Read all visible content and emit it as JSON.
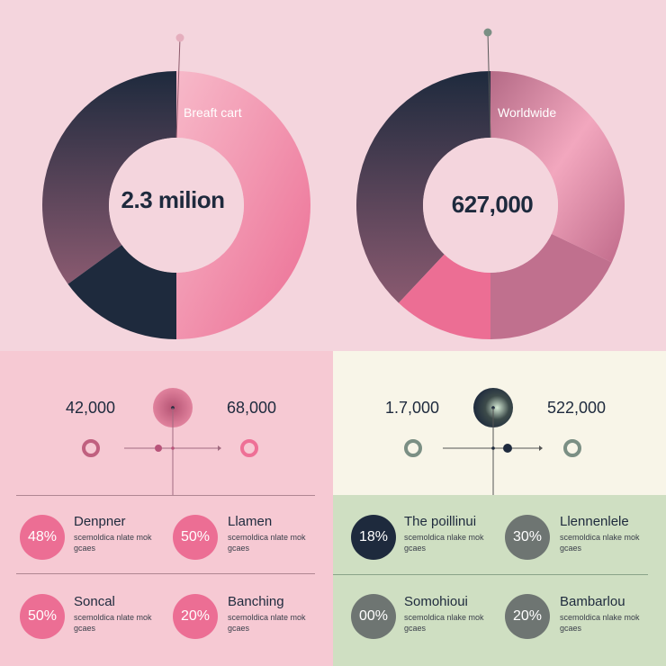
{
  "chart_data": [
    {
      "type": "pie",
      "center_label": "2.3 milion",
      "caption": "Breaft cart",
      "slices": [
        {
          "value": 50,
          "color": "#ec6e94"
        },
        {
          "value": 15,
          "color": "#1e2a3d"
        },
        {
          "value": 35,
          "color": "#3b3346"
        }
      ]
    },
    {
      "type": "pie",
      "center_label": "627,000",
      "caption": "Worldwide",
      "slices": [
        {
          "value": 32,
          "color": "#cf7a97"
        },
        {
          "value": 18,
          "color": "#bf6b88"
        },
        {
          "value": 12,
          "color": "#ec6e94"
        },
        {
          "value": 38,
          "color": "#333a4c"
        }
      ]
    }
  ],
  "stats_left": {
    "left_value": "42,000",
    "right_value": "68,000"
  },
  "stats_right": {
    "left_value": "1.7,000",
    "right_value": "522,000"
  },
  "items": [
    {
      "pct": "48%",
      "title": "Denpner",
      "desc": "scemoldica nlate mok gcaes",
      "circle_color": "#ec6e94"
    },
    {
      "pct": "50%",
      "title": "Llamen",
      "desc": "scemoldica nlate mok gcaes",
      "circle_color": "#ec6e94"
    },
    {
      "pct": "50%",
      "title": "Soncal",
      "desc": "scemoldica nlate mok gcaes",
      "circle_color": "#ec6e94"
    },
    {
      "pct": "20%",
      "title": "Banching",
      "desc": "scemoldica nlate mok gcaes",
      "circle_color": "#ec6e94"
    },
    {
      "pct": "18%",
      "title": "The poillinui",
      "desc": "scemoldica nlake mok gcaes",
      "circle_color": "#1e2a3d"
    },
    {
      "pct": "30%",
      "title": "Llennenlele",
      "desc": "scemoldica nlake mok gcaes",
      "circle_color": "#6e7572"
    },
    {
      "pct": "00%",
      "title": "Somohioui",
      "desc": "scemoldica nlake mok gcaes",
      "circle_color": "#6e7572"
    },
    {
      "pct": "20%",
      "title": "Bambarlou",
      "desc": "scemoldica nlake mok gcaes",
      "circle_color": "#6e7572"
    }
  ]
}
